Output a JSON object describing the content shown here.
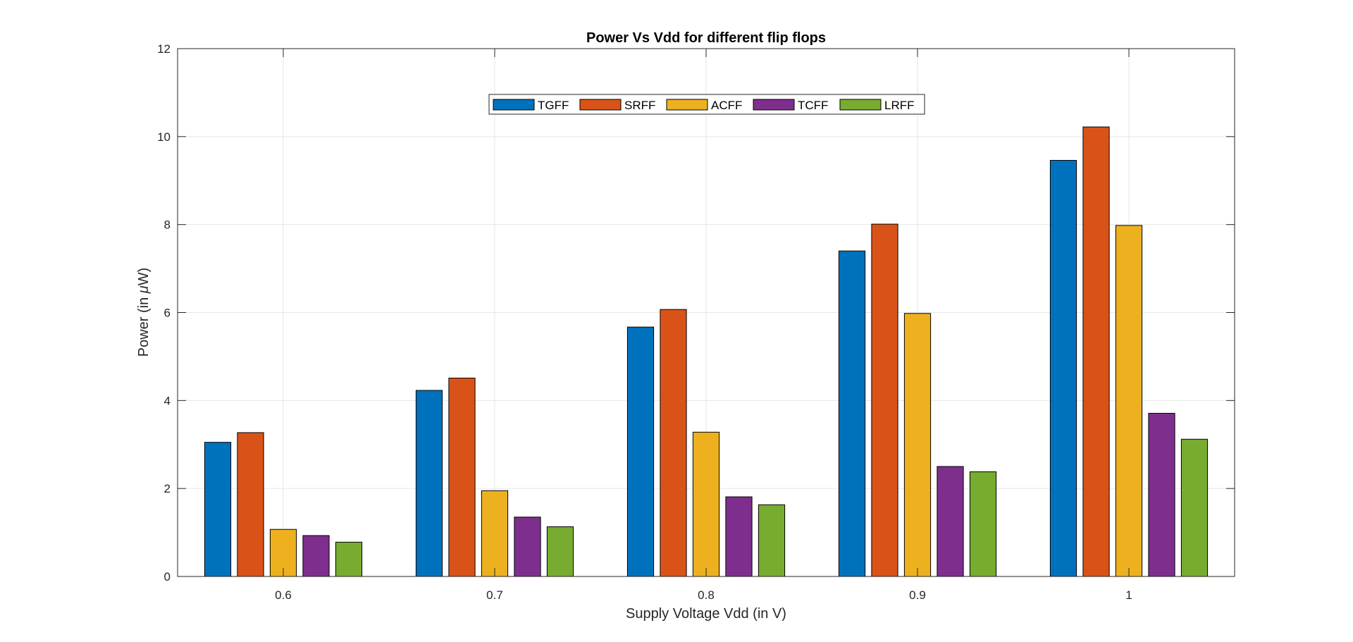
{
  "chart_data": {
    "type": "bar",
    "title": "Power Vs Vdd for different flip flops",
    "xlabel": "Supply Voltage Vdd (in V)",
    "ylabel_prefix": "Power (in ",
    "ylabel_symbol": "μ",
    "ylabel_suffix": "W)",
    "categories": [
      "0.6",
      "0.7",
      "0.8",
      "0.9",
      "1"
    ],
    "ylim": [
      0,
      12
    ],
    "yticks": [
      "0",
      "2",
      "4",
      "6",
      "8",
      "10",
      "12"
    ],
    "grid": true,
    "legend_position": "top-center",
    "series": [
      {
        "name": "TGFF",
        "color": "#0072BD",
        "values": [
          3.05,
          4.23,
          5.67,
          7.4,
          9.46
        ]
      },
      {
        "name": "SRFF",
        "color": "#D95319",
        "values": [
          3.27,
          4.51,
          6.07,
          8.01,
          10.22
        ]
      },
      {
        "name": "ACFF",
        "color": "#EDB120",
        "values": [
          1.07,
          1.95,
          3.28,
          5.98,
          7.98
        ]
      },
      {
        "name": "TCFF",
        "color": "#7E2F8E",
        "values": [
          0.93,
          1.35,
          1.81,
          2.5,
          3.71
        ]
      },
      {
        "name": "LRFF",
        "color": "#77AC30",
        "values": [
          0.78,
          1.13,
          1.63,
          2.38,
          3.12
        ]
      }
    ]
  }
}
